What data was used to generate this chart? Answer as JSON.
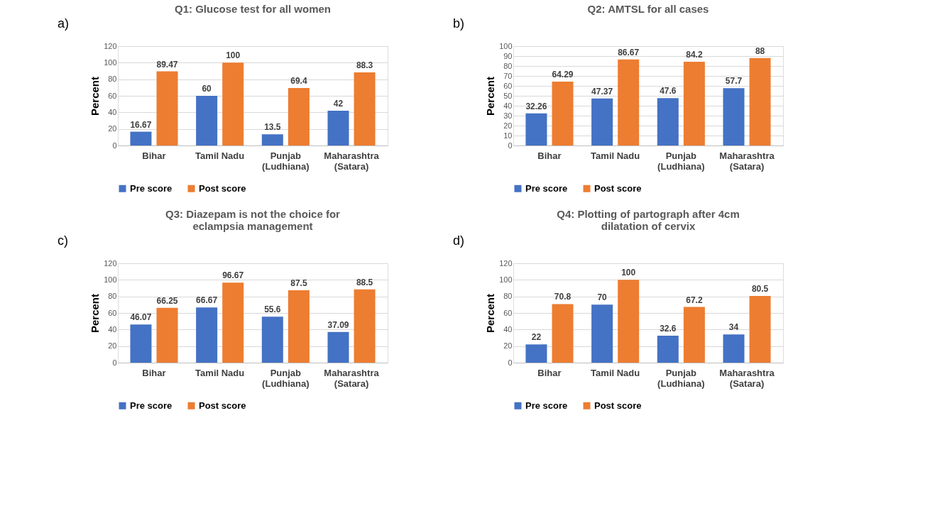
{
  "chart_data": [
    {
      "type": "bar",
      "title": "Q1: Glucose test for all women",
      "ylabel": "Percent",
      "annotations": [
        "a)"
      ],
      "categories": [
        "Bihar",
        "Tamil Nadu",
        "Punjab\n(Ludhiana)",
        "Maharashtra\n(Satara)"
      ],
      "series": [
        {
          "name": "Pre score",
          "color": "#4472c4",
          "values": [
            16.67,
            60,
            13.5,
            42
          ]
        },
        {
          "name": "Post score",
          "color": "#ed7d31",
          "values": [
            89.47,
            100,
            69.4,
            88.3
          ]
        }
      ],
      "ylim": [
        0,
        120
      ],
      "yticks": [
        0,
        20,
        40,
        60,
        80,
        100,
        120
      ],
      "grid": "y",
      "legend": "bottom",
      "data_labels": true
    },
    {
      "type": "bar",
      "title": "Q2: AMTSL for all cases",
      "ylabel": "Percent",
      "annotations": [
        "b)"
      ],
      "categories": [
        "Bihar",
        "Tamil Nadu",
        "Punjab\n(Ludhiana)",
        "Maharashtra\n(Satara)"
      ],
      "series": [
        {
          "name": "Pre score",
          "color": "#4472c4",
          "values": [
            32.26,
            47.37,
            47.6,
            57.7
          ]
        },
        {
          "name": "Post score",
          "color": "#ed7d31",
          "values": [
            64.29,
            86.67,
            84.2,
            88
          ]
        }
      ],
      "ylim": [
        0,
        100
      ],
      "yticks": [
        0,
        10,
        20,
        30,
        40,
        50,
        60,
        70,
        80,
        90,
        100
      ],
      "grid": "y",
      "legend": "bottom",
      "data_labels": true
    },
    {
      "type": "bar",
      "title": "Q3: Diazepam is not the choice for\neclampsia management",
      "ylabel": "Percent",
      "annotations": [
        "c)"
      ],
      "categories": [
        "Bihar",
        "Tamil Nadu",
        "Punjab\n(Ludhiana)",
        "Maharashtra\n(Satara)"
      ],
      "series": [
        {
          "name": "Pre score",
          "color": "#4472c4",
          "values": [
            46.07,
            66.67,
            55.6,
            37.09
          ]
        },
        {
          "name": "Post score",
          "color": "#ed7d31",
          "values": [
            66.25,
            96.67,
            87.5,
            88.5
          ]
        }
      ],
      "ylim": [
        0,
        120
      ],
      "yticks": [
        0,
        20,
        40,
        60,
        80,
        100,
        120
      ],
      "grid": "y",
      "legend": "bottom",
      "data_labels": true
    },
    {
      "type": "bar",
      "title": "Q4: Plotting of partograph after 4cm\ndilatation of cervix",
      "ylabel": "Percent",
      "annotations": [
        "d)"
      ],
      "categories": [
        "Bihar",
        "Tamil Nadu",
        "Punjab\n(Ludhiana)",
        "Maharashtra\n(Satara)"
      ],
      "series": [
        {
          "name": "Pre score",
          "color": "#4472c4",
          "values": [
            22,
            70,
            32.6,
            34
          ]
        },
        {
          "name": "Post score",
          "color": "#ed7d31",
          "values": [
            70.8,
            100,
            67.2,
            80.5
          ]
        }
      ],
      "ylim": [
        0,
        120
      ],
      "yticks": [
        0,
        20,
        40,
        60,
        80,
        100,
        120
      ],
      "grid": "y",
      "legend": "bottom",
      "data_labels": true
    }
  ]
}
